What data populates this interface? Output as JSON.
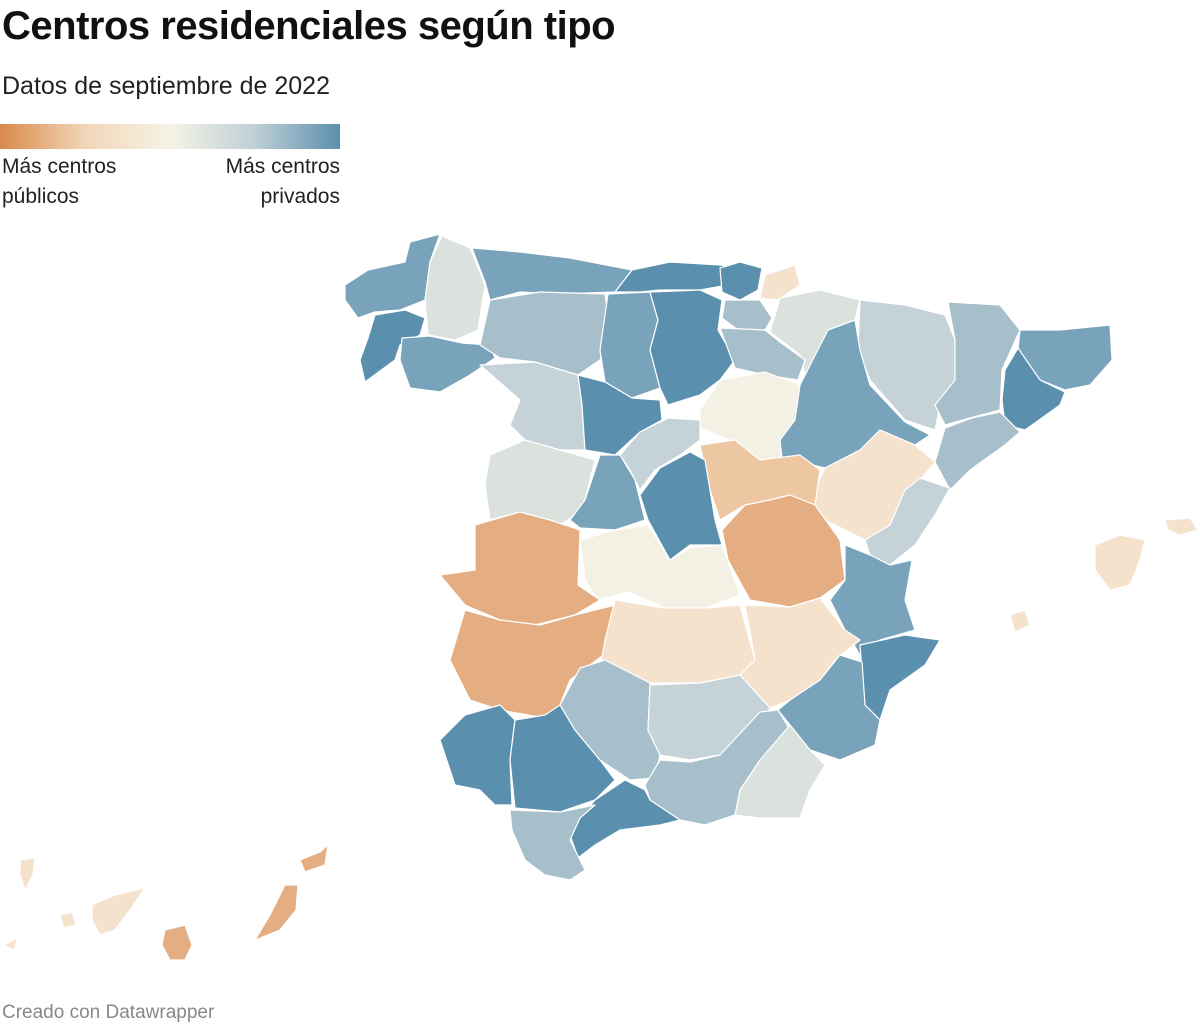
{
  "header": {
    "title": "Centros residenciales según tipo",
    "subtitle": "Datos de septiembre de 2022"
  },
  "legend": {
    "left_label": "Más centros\npúblicos",
    "right_label": "Más centros\nprivados",
    "colors": [
      "#d98a4a",
      "#f2d5b8",
      "#f5f3e6",
      "#bfcfd6",
      "#5b90ad"
    ]
  },
  "footer": {
    "credit": "Creado con Datawrapper"
  },
  "colors": {
    "blue_dark": "#5a8fae",
    "blue_mid": "#78a3bb",
    "blue_light": "#a7bfcb",
    "grey_blue": "#c5d3d9",
    "neutral_grey": "#dbe1dc",
    "cream": "#f3f0e4",
    "peach_light": "#f4e2cd",
    "peach": "#edc7a2",
    "orange": "#e5ae82"
  }
}
